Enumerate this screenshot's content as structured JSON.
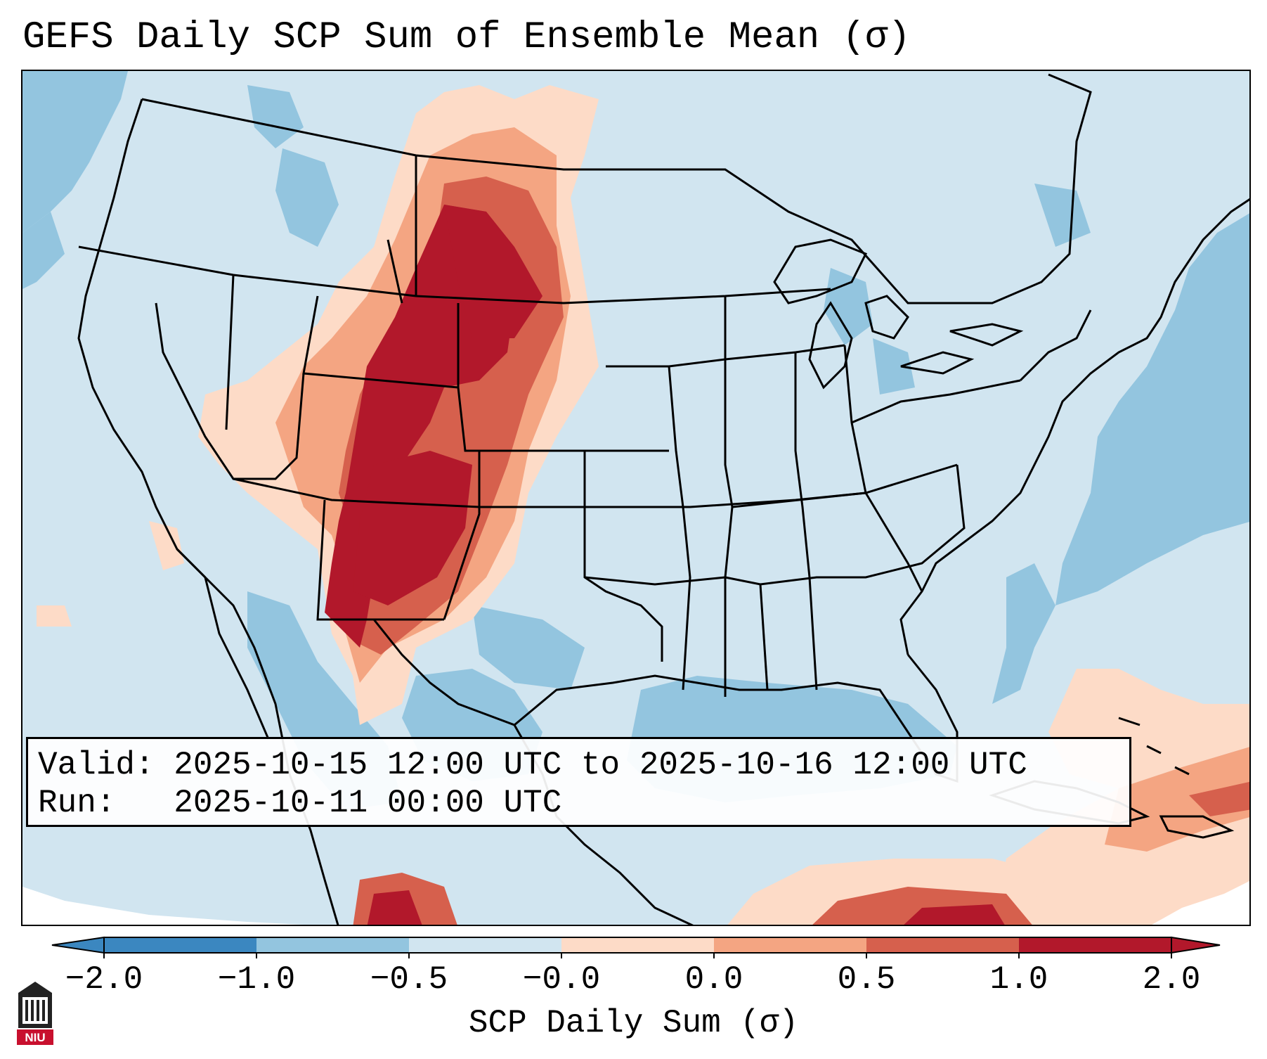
{
  "title": "GEFS Daily SCP Sum of Ensemble Mean (σ)",
  "info_box": {
    "valid_line": "Valid: 2025-10-15 12:00 UTC to 2025-10-16 12:00 UTC",
    "run_line": "Run:   2025-10-11 00:00 UTC"
  },
  "colorbar": {
    "label": "SCP Daily Sum (σ)",
    "ticks": [
      "−2.0",
      "−1.0",
      "−0.5",
      "−0.0",
      "0.0",
      "0.5",
      "1.0",
      "2.0"
    ],
    "colors": [
      "#3b87c0",
      "#93c5df",
      "#d1e5f0",
      "#f7f7f7",
      "#fddbc7",
      "#f4a582",
      "#d6604d",
      "#b2182b"
    ],
    "extend": "both"
  },
  "legend_colors": {
    "ocean_low": "#93c5df",
    "land_neutral": "#d1e5f0",
    "high_core": "#b2182b",
    "high_edge": "#d6604d",
    "mid_high": "#f4a582",
    "low_high": "#fddbc7"
  },
  "logo": {
    "text": "NIU",
    "icon": "niu-logo-icon"
  }
}
